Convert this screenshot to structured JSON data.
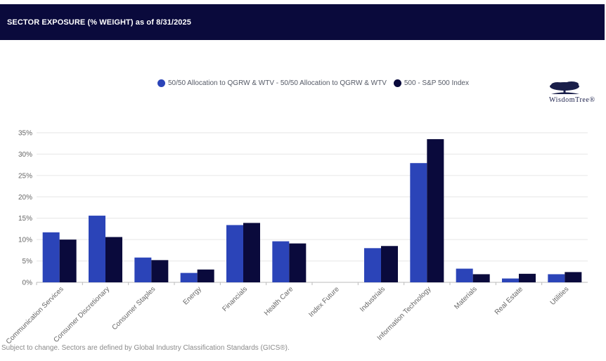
{
  "header": {
    "title": "SECTOR EXPOSURE (% WEIGHT) as of 8/31/2025"
  },
  "logo": {
    "text": "WisdomTree®",
    "icon": "tree-icon"
  },
  "footnote": "Subject to change. Sectors are defined by Global Industry Classification Standards (GICS®).",
  "colors": {
    "series1": "#2b44b8",
    "series2": "#0a0a3c",
    "header_bg": "#0a0a3c"
  },
  "chart_data": {
    "type": "bar",
    "categories": [
      "Communication Services",
      "Consumer Discretionary",
      "Consumer Staples",
      "Energy",
      "Financials",
      "Health Care",
      "Index Future",
      "Industrials",
      "Information Technology",
      "Materials",
      "Real Estate",
      "Utilities"
    ],
    "series": [
      {
        "name": "50/50 Allocation to QGRW & WTV - 50/50 Allocation to QGRW & WTV",
        "values": [
          11.7,
          15.6,
          5.8,
          2.2,
          13.4,
          9.6,
          0,
          8.0,
          27.9,
          3.2,
          0.9,
          1.9
        ]
      },
      {
        "name": "500 - S&P 500 Index",
        "values": [
          10.0,
          10.6,
          5.2,
          3.0,
          13.9,
          9.1,
          0,
          8.5,
          33.5,
          1.9,
          2.0,
          2.4
        ]
      }
    ],
    "yticks": [
      "0%",
      "5%",
      "10%",
      "15%",
      "20%",
      "25%",
      "30%",
      "35%"
    ],
    "ylim": [
      0,
      35
    ],
    "xlabel": "",
    "ylabel": "",
    "grid": true,
    "legend": "top"
  }
}
